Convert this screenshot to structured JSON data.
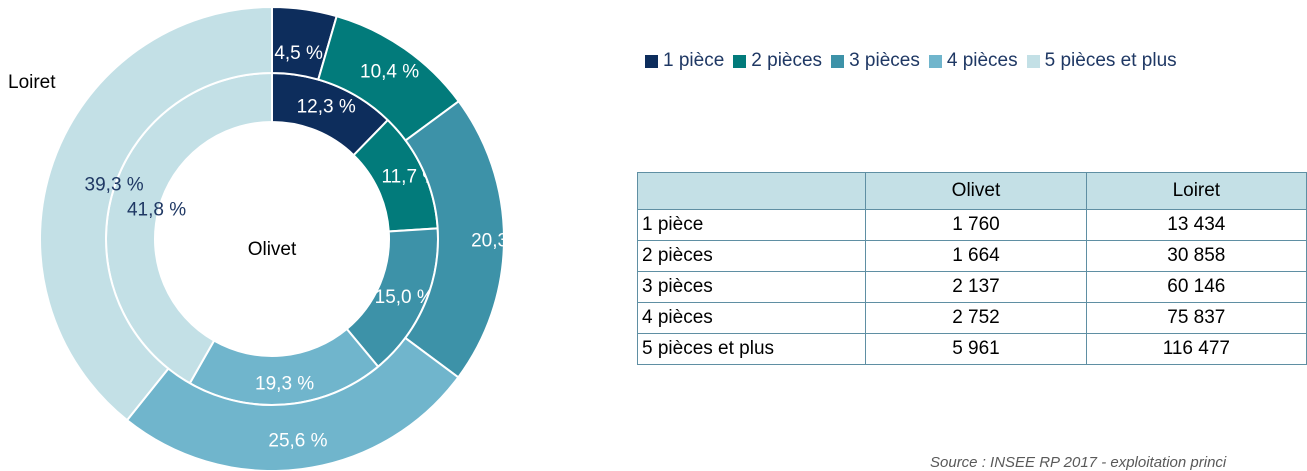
{
  "chart_data": {
    "type": "donut",
    "categories": [
      "1 pièce",
      "2 pièces",
      "3 pièces",
      "4 pièces",
      "5 pièces et plus"
    ],
    "colors": [
      "#0d2d5c",
      "#027b7b",
      "#3d92a8",
      "#70b5cc",
      "#c3e0e6"
    ],
    "series": [
      {
        "name": "Olivet",
        "ring": "inner",
        "values": [
          12.3,
          11.7,
          15.0,
          19.3,
          41.8
        ],
        "labels": [
          "12,3 %",
          "11,7 %",
          "15,0 %",
          "19,3 %",
          "41,8 %"
        ]
      },
      {
        "name": "Loiret",
        "ring": "outer",
        "values": [
          4.5,
          10.4,
          20.3,
          25.6,
          39.3
        ],
        "labels": [
          "4,5 %",
          "10,4 %",
          "20,3 %",
          "25,6 %",
          "39,3 %"
        ]
      }
    ],
    "center_label": "Olivet",
    "outer_label": "Loiret",
    "legend_position": "top-right"
  },
  "legend": [
    "1 pièce",
    "2 pièces",
    "3 pièces",
    "4 pièces",
    "5 pièces et plus"
  ],
  "table": {
    "headers": [
      "",
      "Olivet",
      "Loiret"
    ],
    "rows": [
      [
        "1 pièce",
        "1 760",
        "13 434"
      ],
      [
        "2 pièces",
        "1 664",
        "30 858"
      ],
      [
        "3 pièces",
        "2 137",
        "60 146"
      ],
      [
        "4 pièces",
        "2 752",
        "75 837"
      ],
      [
        "5 pièces et plus",
        "5 961",
        "116 477"
      ]
    ]
  },
  "source": "Source : INSEE RP 2017 - exploitation princi"
}
